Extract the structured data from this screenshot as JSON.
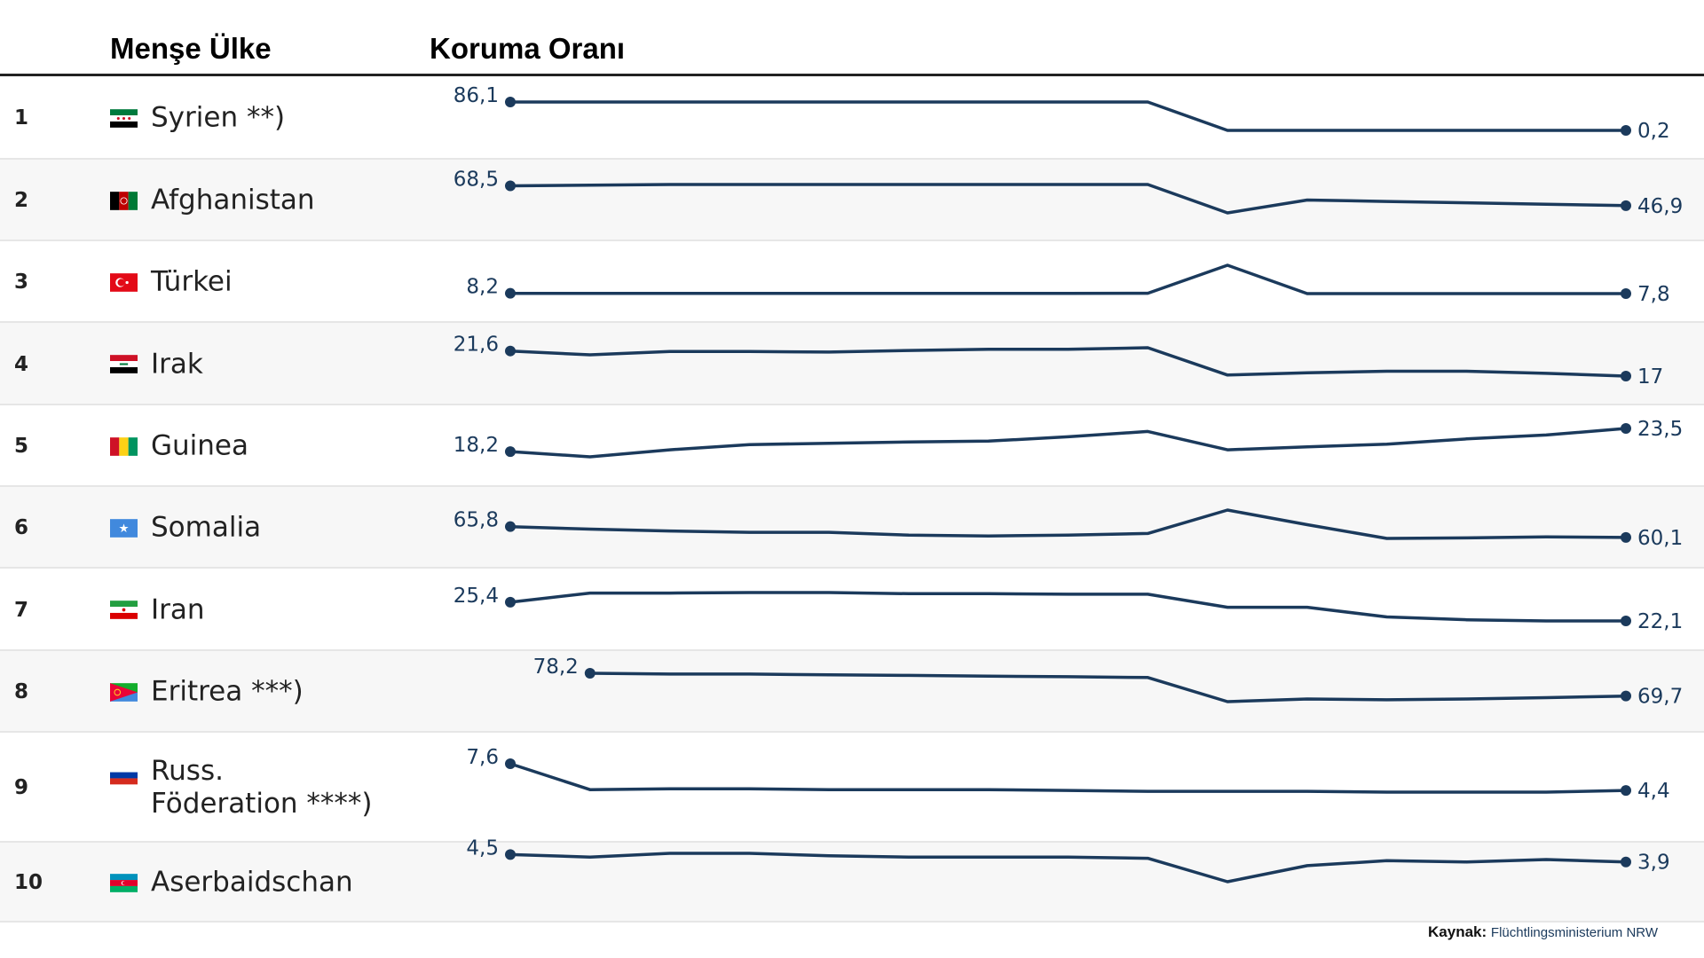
{
  "header": {
    "country_label": "Menşe Ülke",
    "rate_label": "Koruma Oranı"
  },
  "source": {
    "label": "Kaynak:",
    "name": "Flüchtlingsministerium NRW"
  },
  "colors": {
    "line": "#1b3a5c",
    "row_alt": "#f7f7f7"
  },
  "chart_data": {
    "type": "line",
    "title": "",
    "xlabel": "",
    "ylabel": "",
    "note": "sparkline per row; 15 equally spaced periods, first and last values labelled",
    "rows": [
      {
        "rank": "1",
        "country": "Syrien **)",
        "flag": "syria-flag-icon",
        "start_label": "86,1",
        "end_label": "0,2",
        "start_index": 0,
        "values": [
          86.1,
          86,
          86,
          86,
          86,
          86,
          86,
          86,
          86,
          0.2,
          0.2,
          0.2,
          0.2,
          0.2,
          0.2
        ]
      },
      {
        "rank": "2",
        "country": "Afghanistan",
        "flag": "afghanistan-flag-icon",
        "start_label": "68,5",
        "end_label": "46,9",
        "start_index": 0,
        "values": [
          68.5,
          69.2,
          70,
          70,
          70,
          70,
          70,
          70,
          70,
          39,
          53,
          51.5,
          50,
          48.5,
          46.9
        ]
      },
      {
        "rank": "3",
        "country": "Türkei",
        "flag": "turkey-flag-icon",
        "start_label": "8,2",
        "end_label": "7,8",
        "start_index": 0,
        "values": [
          8.2,
          8.2,
          8.2,
          8.2,
          8.2,
          8.2,
          8.2,
          8.2,
          8.3,
          48,
          7.8,
          7.8,
          7.8,
          7.8,
          7.8
        ]
      },
      {
        "rank": "4",
        "country": "Irak",
        "flag": "iraq-flag-icon",
        "start_label": "21,6",
        "end_label": "17",
        "start_index": 0,
        "values": [
          21.6,
          20.9,
          21.5,
          21.5,
          21.4,
          21.7,
          21.9,
          21.9,
          22.2,
          17.2,
          17.6,
          17.9,
          17.9,
          17.5,
          17
        ]
      },
      {
        "rank": "5",
        "country": "Guinea",
        "flag": "guinea-flag-icon",
        "start_label": "18,2",
        "end_label": "23,5",
        "start_index": 0,
        "values": [
          18.2,
          17,
          18.6,
          19.8,
          20.1,
          20.4,
          20.6,
          21.6,
          22.8,
          18.6,
          19.3,
          19.9,
          21.1,
          22,
          23.5
        ]
      },
      {
        "rank": "6",
        "country": "Somalia",
        "flag": "somalia-flag-icon",
        "start_label": "65,8",
        "end_label": "60,1",
        "start_index": 0,
        "values": [
          65.8,
          64.5,
          63.5,
          62.8,
          62.8,
          61.3,
          60.9,
          61.3,
          62.2,
          74.5,
          66.8,
          59.6,
          59.9,
          60.4,
          60.1
        ]
      },
      {
        "rank": "7",
        "country": "Iran",
        "flag": "iran-flag-icon",
        "start_label": "25,4",
        "end_label": "22,1",
        "start_index": 0,
        "values": [
          25.4,
          27,
          27,
          27.1,
          27.1,
          26.9,
          26.9,
          26.8,
          26.8,
          24.5,
          24.5,
          22.8,
          22.3,
          22.1,
          22.1
        ]
      },
      {
        "rank": "8",
        "country": "Eritrea ***)",
        "flag": "eritrea-flag-icon",
        "start_label": "78,2",
        "end_label": "69,7",
        "start_index": 1,
        "values": [
          null,
          78.2,
          77.9,
          77.9,
          77.6,
          77.4,
          77.1,
          76.9,
          76.6,
          67.6,
          68.6,
          68.3,
          68.6,
          69.1,
          69.7
        ]
      },
      {
        "rank": "9",
        "country": "Russ.\nFöderation ****)",
        "flag": "russia-flag-icon",
        "start_label": "7,6",
        "end_label": "4,4",
        "start_index": 0,
        "values": [
          7.6,
          4.5,
          4.6,
          4.6,
          4.5,
          4.5,
          4.5,
          4.4,
          4.3,
          4.3,
          4.3,
          4.2,
          4.2,
          4.2,
          4.4
        ]
      },
      {
        "rank": "10",
        "country": "Aserbaidschan",
        "flag": "azerbaijan-flag-icon",
        "start_label": "4,5",
        "end_label": "3,9",
        "start_index": 0,
        "values": [
          4.5,
          4.3,
          4.6,
          4.6,
          4.4,
          4.3,
          4.3,
          4.3,
          4.2,
          2.3,
          3.6,
          4,
          3.9,
          4.1,
          3.9
        ]
      }
    ]
  }
}
